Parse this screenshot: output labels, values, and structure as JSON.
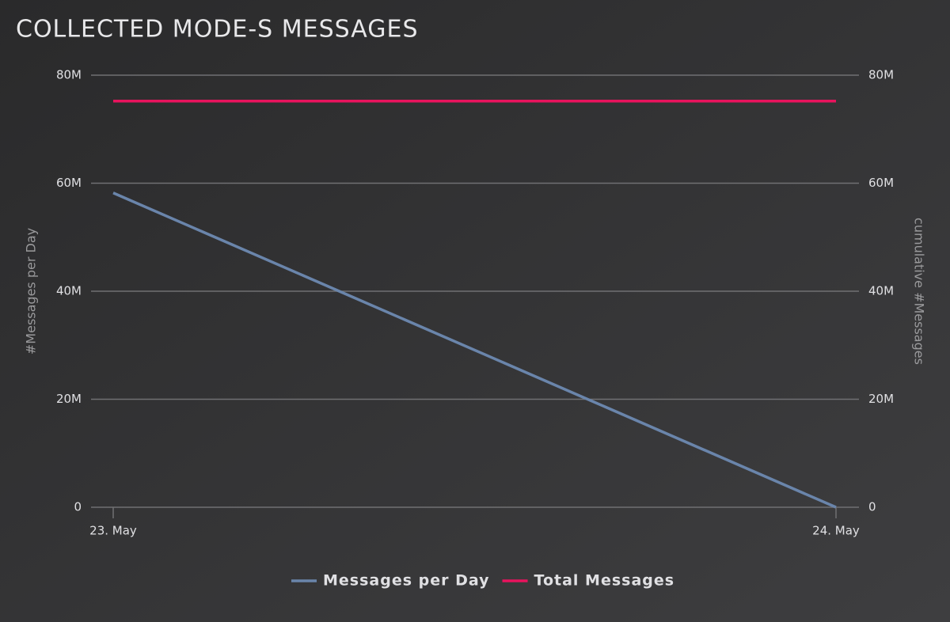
{
  "chart_data": {
    "type": "line",
    "title": "COLLECTED MODE-S MESSAGES",
    "categories": [
      "23. May",
      "24. May"
    ],
    "y_label": "#Messages per Day",
    "y2_label": "cumulative #Messages",
    "series": [
      {
        "name": "Messages per Day",
        "color": "#6a85ab",
        "values": [
          58200000,
          0
        ]
      },
      {
        "name": "Total Messages",
        "color": "#e8135d",
        "axis": "y2",
        "values": [
          75200000,
          75200000
        ]
      }
    ],
    "ylim": [
      0,
      80000000
    ],
    "yticks": [
      0,
      {
        "value": 20000000,
        "label": "20M"
      },
      {
        "value": 40000000,
        "label": "40M"
      },
      {
        "value": 60000000,
        "label": "60M"
      },
      {
        "value": 80000000,
        "label": "80M"
      }
    ],
    "y2lim": [
      0,
      80000000
    ],
    "y2ticks": [
      0,
      {
        "value": 20000000,
        "label": "20M"
      },
      {
        "value": 40000000,
        "label": "40M"
      },
      {
        "value": 60000000,
        "label": "60M"
      },
      {
        "value": 80000000,
        "label": "80M"
      }
    ],
    "grid": true,
    "legend": "bottom"
  }
}
